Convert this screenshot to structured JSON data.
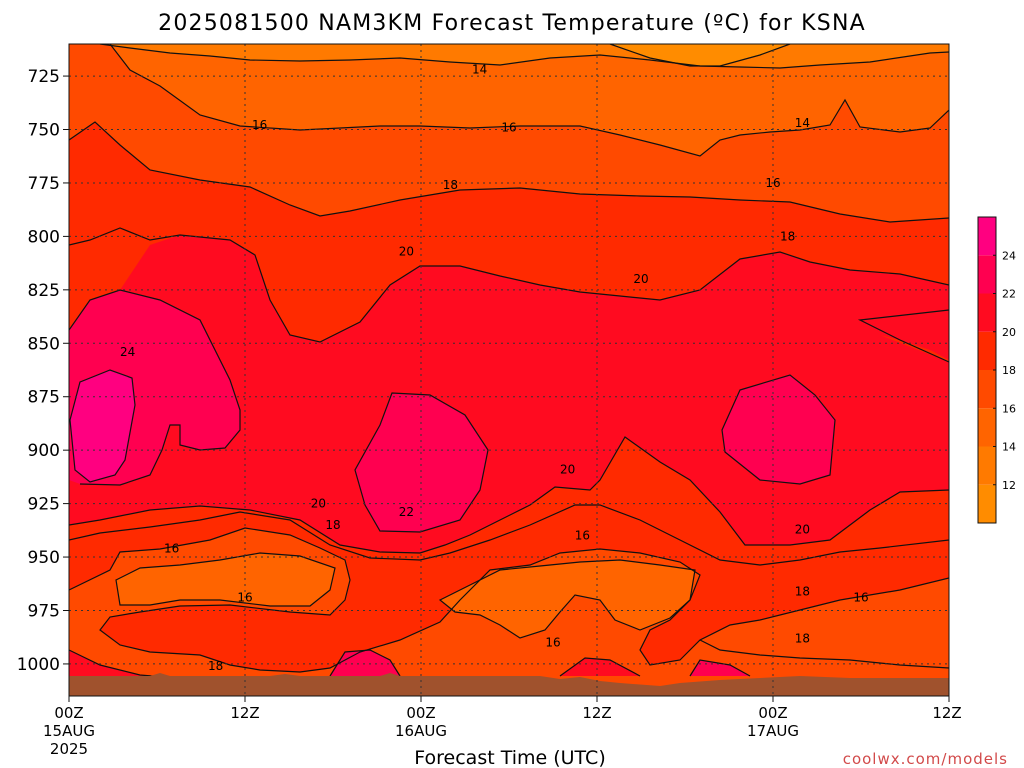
{
  "chart_data": {
    "type": "heatmap",
    "title": "2025081500 NAM3KM Forecast Temperature (ºC) for KSNA",
    "xlabel": "Forecast Time (UTC)",
    "ylabel": "",
    "y_axis": {
      "unit": "hPa",
      "inverted": true,
      "range": [
        710,
        1015
      ],
      "ticks": [
        725,
        750,
        775,
        800,
        825,
        850,
        875,
        900,
        925,
        950,
        975,
        1000
      ]
    },
    "x_axis": {
      "unit": "forecast hour",
      "range": [
        0,
        60
      ],
      "ticks": [
        {
          "hour": 0,
          "label": "00Z",
          "sub": "15AUG",
          "sub2": "2025"
        },
        {
          "hour": 12,
          "label": "12Z",
          "sub": "",
          "sub2": ""
        },
        {
          "hour": 24,
          "label": "00Z",
          "sub": "16AUG",
          "sub2": ""
        },
        {
          "hour": 36,
          "label": "12Z",
          "sub": "",
          "sub2": ""
        },
        {
          "hour": 48,
          "label": "00Z",
          "sub": "17AUG",
          "sub2": ""
        },
        {
          "hour": 60,
          "label": "12Z",
          "sub": "",
          "sub2": ""
        }
      ]
    },
    "grid": true,
    "colorbar": {
      "placement": "right",
      "levels": [
        10,
        12,
        14,
        16,
        18,
        20,
        22,
        24,
        26
      ],
      "tick_labels": [
        12,
        14,
        16,
        18,
        20,
        22,
        24
      ],
      "colors": [
        "#ff8c00",
        "#ff7a00",
        "#ff6400",
        "#ff4a00",
        "#ff2a00",
        "#ff0b20",
        "#ff0050",
        "#ff0080"
      ]
    },
    "contour_levels": [
      14,
      16,
      18,
      20,
      22,
      24
    ],
    "contour_labels": [
      {
        "value": 14,
        "hour": 28,
        "p": 722
      },
      {
        "value": 16,
        "hour": 13,
        "p": 748
      },
      {
        "value": 16,
        "hour": 30,
        "p": 749
      },
      {
        "value": 14,
        "hour": 50,
        "p": 747
      },
      {
        "value": 18,
        "hour": 26,
        "p": 776
      },
      {
        "value": 16,
        "hour": 48,
        "p": 775
      },
      {
        "value": 20,
        "hour": 23,
        "p": 807
      },
      {
        "value": 18,
        "hour": 49,
        "p": 800
      },
      {
        "value": 20,
        "hour": 39,
        "p": 820
      },
      {
        "value": 24,
        "hour": 4,
        "p": 854
      },
      {
        "value": 20,
        "hour": 34,
        "p": 909
      },
      {
        "value": 20,
        "hour": 17,
        "p": 925
      },
      {
        "value": 22,
        "hour": 23,
        "p": 929
      },
      {
        "value": 18,
        "hour": 18,
        "p": 935
      },
      {
        "value": 16,
        "hour": 7,
        "p": 946
      },
      {
        "value": 16,
        "hour": 35,
        "p": 940
      },
      {
        "value": 20,
        "hour": 50,
        "p": 937
      },
      {
        "value": 18,
        "hour": 50,
        "p": 966
      },
      {
        "value": 16,
        "hour": 54,
        "p": 969
      },
      {
        "value": 16,
        "hour": 12,
        "p": 969
      },
      {
        "value": 16,
        "hour": 33,
        "p": 990
      },
      {
        "value": 18,
        "hour": 50,
        "p": 988
      },
      {
        "value": 18,
        "hour": 10,
        "p": 1001
      }
    ],
    "credit": "coolwx.com/models"
  },
  "colors": {
    "c10": "#ff8c00",
    "c12": "#ff7a00",
    "c14": "#ff6400",
    "c16": "#ff4a00",
    "c18": "#ff2a00",
    "c20": "#ff0b20",
    "c22": "#ff0050",
    "c24": "#ff0080",
    "terrain": "#a0522d"
  }
}
